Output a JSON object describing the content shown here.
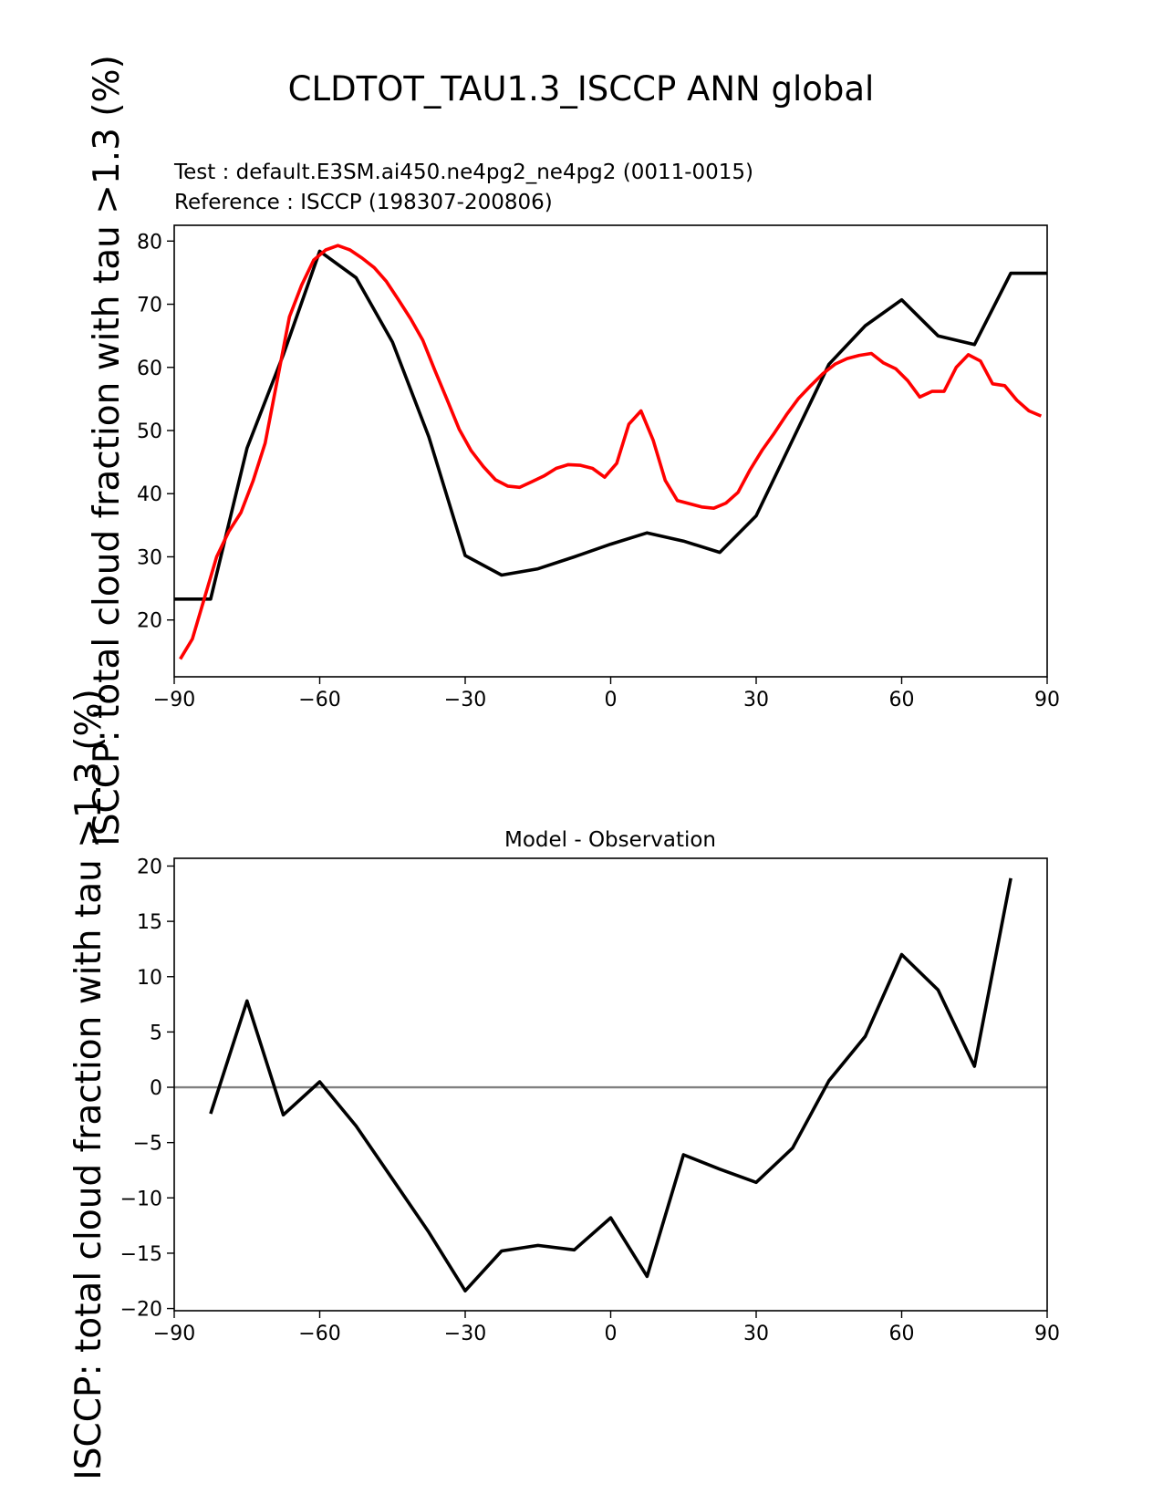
{
  "figure": {
    "title": "CLDTOT_TAU1.3_ISCCP ANN global"
  },
  "colors": {
    "test": "#000000",
    "reference": "#ff0000",
    "zero_line": "#808080"
  },
  "chart_data": [
    {
      "type": "line",
      "test_label": "Test : default.E3SM.ai450.ne4pg2_ne4pg2 (0011-0015)",
      "reference_label": "Reference : ISCCP (198307-200806)",
      "ylabel": "ISCCP: total cloud fraction with tau >1.3 (%)",
      "xlim": [
        -90,
        90
      ],
      "ylim": [
        11,
        82.5
      ],
      "xticks": [
        -90,
        -60,
        -30,
        0,
        30,
        60,
        90
      ],
      "xtick_labels": [
        "−90",
        "−60",
        "−30",
        "0",
        "30",
        "60",
        "90"
      ],
      "yticks": [
        20,
        30,
        40,
        50,
        60,
        70,
        80
      ],
      "ytick_labels": [
        "20",
        "30",
        "40",
        "50",
        "60",
        "70",
        "80"
      ],
      "series": [
        {
          "role": "test",
          "x": [
            -90,
            -82.5,
            -75,
            -67.5,
            -60,
            -52.5,
            -45,
            -37.5,
            -30,
            -22.5,
            -15,
            -7.5,
            0,
            7.5,
            15,
            22.5,
            30,
            37.5,
            45,
            52.5,
            60,
            67.5,
            75,
            82.5,
            90
          ],
          "y": [
            23.3,
            23.3,
            47.2,
            62,
            78.4,
            74.2,
            64,
            49,
            30.2,
            27.1,
            28.1,
            30,
            32,
            33.8,
            32.5,
            30.7,
            36.5,
            48.5,
            60.5,
            66.6,
            70.7,
            65,
            63.6,
            74.9,
            74.9
          ]
        },
        {
          "role": "reference",
          "x": [
            -88.75,
            -86.25,
            -83.75,
            -81.25,
            -78.75,
            -76.25,
            -73.75,
            -71.25,
            -68.75,
            -66.25,
            -63.75,
            -61.25,
            -58.75,
            -56.25,
            -53.75,
            -51.25,
            -48.75,
            -46.25,
            -43.75,
            -41.25,
            -38.75,
            -36.25,
            -33.75,
            -31.25,
            -28.75,
            -26.25,
            -23.75,
            -21.25,
            -18.75,
            -16.25,
            -13.75,
            -11.25,
            -8.75,
            -6.25,
            -3.75,
            -1.25,
            1.25,
            3.75,
            6.25,
            8.75,
            11.25,
            13.75,
            16.25,
            18.75,
            21.25,
            23.75,
            26.25,
            28.75,
            31.25,
            33.75,
            36.25,
            38.75,
            41.25,
            43.75,
            46.25,
            48.75,
            51.25,
            53.75,
            56.25,
            58.75,
            61.25,
            63.75,
            66.25,
            68.75,
            71.25,
            73.75,
            76.25,
            78.75,
            81.25,
            83.75,
            86.25,
            88.75
          ],
          "y": [
            13.8,
            17,
            23.5,
            30,
            34,
            37,
            42,
            48,
            58,
            68,
            73,
            77,
            78.6,
            79.3,
            78.6,
            77.3,
            75.8,
            73.6,
            70.7,
            67.7,
            64.3,
            59.5,
            54.9,
            50.2,
            46.8,
            44.3,
            42.2,
            41.2,
            41,
            41.9,
            42.8,
            44,
            44.6,
            44.5,
            44,
            42.6,
            44.8,
            51,
            53.1,
            48.5,
            42.1,
            38.9,
            38.4,
            37.9,
            37.7,
            38.5,
            40.2,
            43.8,
            46.9,
            49.6,
            52.5,
            55.1,
            57.1,
            59,
            60.5,
            61.4,
            61.9,
            62.2,
            60.7,
            59.8,
            57.9,
            55.3,
            56.2,
            56.2,
            60,
            62,
            61,
            57.4,
            57.1,
            54.8,
            53.1,
            52.3
          ]
        }
      ]
    },
    {
      "type": "line",
      "title": "Model - Observation",
      "ylabel": "ISCCP: total cloud fraction with tau >1.3 (%)",
      "xlim": [
        -90,
        90
      ],
      "ylim": [
        -20.2,
        20.7
      ],
      "xticks": [
        -90,
        -60,
        -30,
        0,
        30,
        60,
        90
      ],
      "xtick_labels": [
        "−90",
        "−60",
        "−30",
        "0",
        "30",
        "60",
        "90"
      ],
      "yticks": [
        -20,
        -15,
        -10,
        -5,
        0,
        5,
        10,
        15,
        20
      ],
      "ytick_labels": [
        "−20",
        "−15",
        "−10",
        "−5",
        "0",
        "5",
        "10",
        "15",
        "20"
      ],
      "zero_line": 0,
      "series": [
        {
          "role": "difference",
          "x": [
            -82.5,
            -75,
            -67.5,
            -60,
            -52.5,
            -45,
            -37.5,
            -30,
            -22.5,
            -15,
            -7.5,
            0,
            7.5,
            15,
            22.5,
            30,
            37.5,
            45,
            52.5,
            60,
            67.5,
            75,
            82.5
          ],
          "y": [
            -2.4,
            7.8,
            -2.5,
            0.5,
            -3.5,
            -8.3,
            -13.1,
            -18.4,
            -14.8,
            -14.3,
            -14.7,
            -11.8,
            -17.1,
            -6.1,
            -7.4,
            -8.6,
            -5.5,
            0.6,
            4.6,
            12,
            8.8,
            1.9,
            18.9
          ]
        }
      ]
    }
  ]
}
